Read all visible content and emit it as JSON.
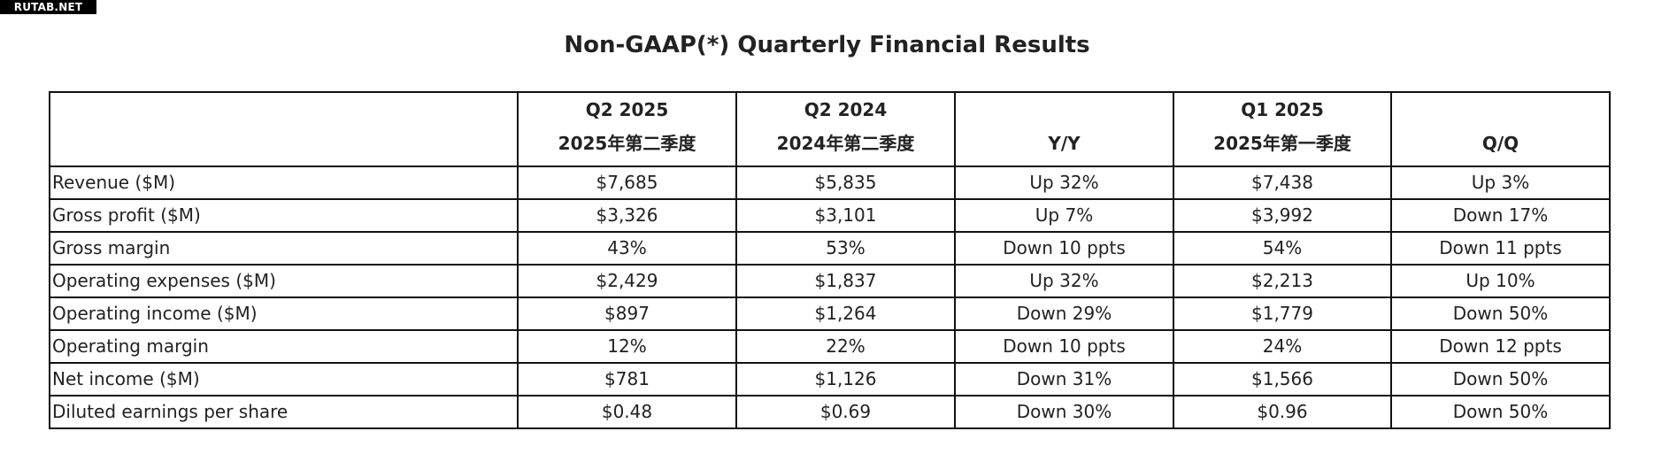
{
  "watermark": "RUTAB.NET",
  "title": "Non-GAAP(*) Quarterly Financial Results",
  "table": {
    "headers": [
      {
        "line1": "",
        "line2": ""
      },
      {
        "line1": "Q2 2025",
        "line2": "2025年第二季度"
      },
      {
        "line1": "Q2 2024",
        "line2": "2024年第二季度"
      },
      {
        "line1": "",
        "line2": "Y/Y"
      },
      {
        "line1": "Q1 2025",
        "line2": "2025年第一季度"
      },
      {
        "line1": "",
        "line2": "Q/Q"
      }
    ],
    "rows": [
      [
        "Revenue ($M)",
        "$7,685",
        "$5,835",
        "Up 32%",
        "$7,438",
        "Up 3%"
      ],
      [
        "Gross profit ($M)",
        "$3,326",
        "$3,101",
        "Up 7%",
        "$3,992",
        "Down 17%"
      ],
      [
        "Gross margin",
        "43%",
        "53%",
        "Down 10 ppts",
        "54%",
        "Down 11 ppts"
      ],
      [
        "Operating expenses ($M)",
        "$2,429",
        "$1,837",
        "Up 32%",
        "$2,213",
        "Up 10%"
      ],
      [
        "Operating income ($M)",
        "$897",
        "$1,264",
        "Down 29%",
        "$1,779",
        "Down 50%"
      ],
      [
        "Operating margin",
        "12%",
        "22%",
        "Down 10 ppts",
        "24%",
        "Down 12 ppts"
      ],
      [
        "Net income ($M)",
        "$781",
        "$1,126",
        "Down 31%",
        "$1,566",
        "Down 50%"
      ],
      [
        "Diluted earnings per share",
        "$0.48",
        "$0.69",
        "Down 30%",
        "$0.96",
        "Down 50%"
      ]
    ]
  }
}
